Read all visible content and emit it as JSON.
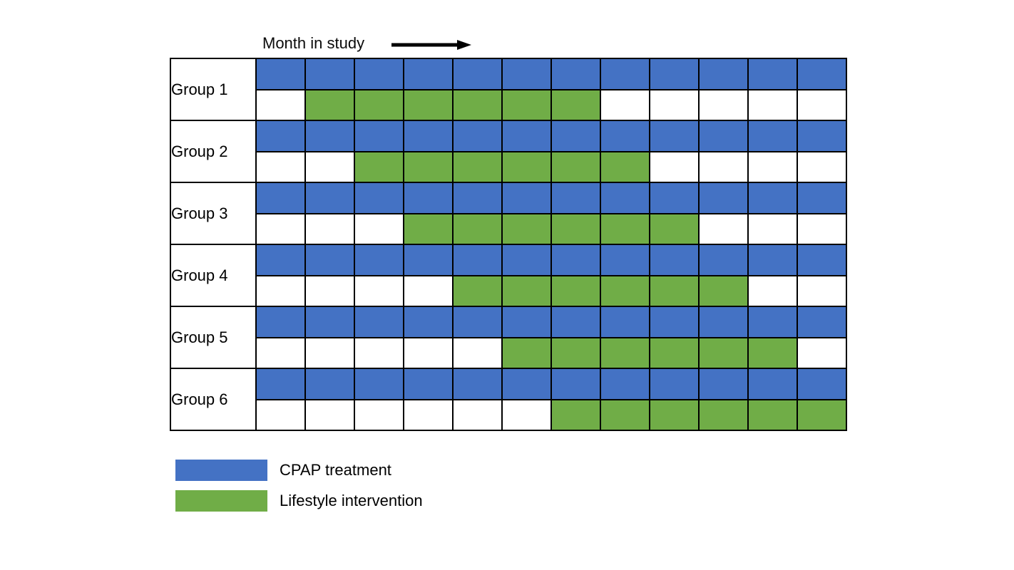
{
  "figure": {
    "title": "Month in study"
  },
  "colors": {
    "cpap": "#4472C4",
    "lifestyle": "#70AD47",
    "grid_line": "#000000",
    "background": "#FFFFFF",
    "arrow": "#000000"
  },
  "legend": {
    "items": [
      {
        "label": "CPAP treatment",
        "color_key": "cpap"
      },
      {
        "label": "Lifestyle intervention",
        "color_key": "lifestyle"
      }
    ]
  },
  "chart_data": {
    "type": "heatmap",
    "title": "Month in study",
    "xlabel": "Month in study",
    "months": 12,
    "row_kinds_per_group": [
      "CPAP treatment",
      "Lifestyle intervention"
    ],
    "groups": [
      {
        "label": "Group 1",
        "cpap_months": [
          1,
          12
        ],
        "lifestyle_months": [
          2,
          7
        ]
      },
      {
        "label": "Group 2",
        "cpap_months": [
          1,
          12
        ],
        "lifestyle_months": [
          3,
          8
        ]
      },
      {
        "label": "Group 3",
        "cpap_months": [
          1,
          12
        ],
        "lifestyle_months": [
          4,
          9
        ]
      },
      {
        "label": "Group 4",
        "cpap_months": [
          1,
          12
        ],
        "lifestyle_months": [
          5,
          10
        ]
      },
      {
        "label": "Group 5",
        "cpap_months": [
          1,
          12
        ],
        "lifestyle_months": [
          6,
          11
        ]
      },
      {
        "label": "Group 6",
        "cpap_months": [
          1,
          12
        ],
        "lifestyle_months": [
          7,
          12
        ]
      }
    ]
  }
}
